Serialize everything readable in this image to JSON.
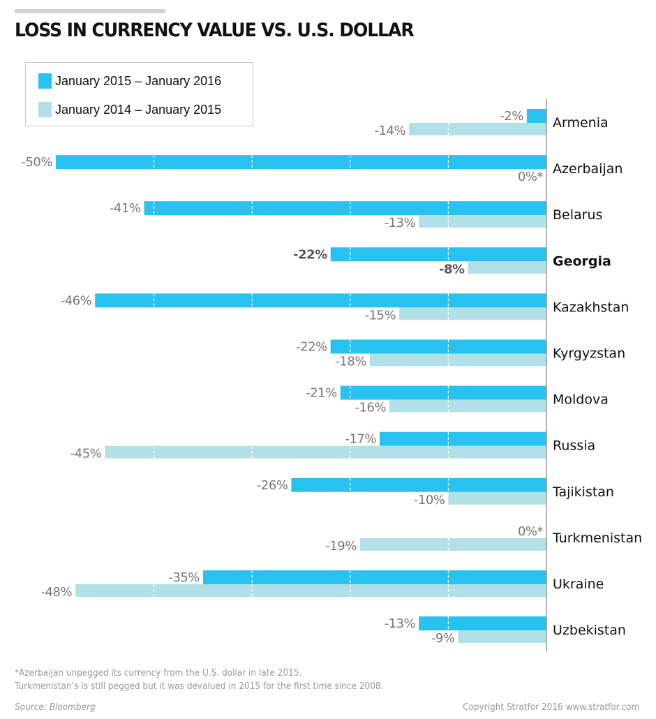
{
  "header": {
    "title": "LOSS IN CURRENCY VALUE VS. U.S. DOLLAR"
  },
  "colors": {
    "series_2016": "#27c2ef",
    "series_2015": "#b1e0e8",
    "axis": "#999999",
    "label_text": "#777777",
    "label_text_bold": "#555555",
    "country_text": "#111111"
  },
  "chart_data": {
    "type": "bar",
    "orientation": "horizontal",
    "title": "LOSS IN CURRENCY VALUE VS. U.S. DOLLAR",
    "xlabel": "",
    "ylabel": "",
    "xlim": [
      -50,
      0
    ],
    "grid": {
      "x": true,
      "style": "dashed",
      "ticks": [
        -40,
        -30,
        -20,
        -10
      ]
    },
    "legend_position": "top-left",
    "categories": [
      "Armenia",
      "Azerbaijan",
      "Belarus",
      "Georgia",
      "Kazakhstan",
      "Kyrgyzstan",
      "Moldova",
      "Russia",
      "Tajikistan",
      "Turkmenistan",
      "Ukraine",
      "Uzbekistan"
    ],
    "highlight_category": "Georgia",
    "series": [
      {
        "name": "January 2015 – January 2016",
        "values": [
          -2,
          -50,
          -41,
          -22,
          -46,
          -22,
          -21,
          -17,
          -26,
          0,
          -35,
          -13
        ],
        "labels": [
          "-2%",
          "-50%",
          "-41%",
          "-22%",
          "-46%",
          "-22%",
          "-21%",
          "-17%",
          "-26%",
          "0%*",
          "-35%",
          "-13%"
        ]
      },
      {
        "name": "January 2014 – January 2015",
        "values": [
          -14,
          0,
          -13,
          -8,
          -15,
          -18,
          -16,
          -45,
          -10,
          -19,
          -48,
          -9
        ],
        "labels": [
          "-14%",
          "0%*",
          "-13%",
          "-8%",
          "-15%",
          "-18%",
          "-16%",
          "-45%",
          "-10%",
          "-19%",
          "-48%",
          "-9%"
        ]
      }
    ]
  },
  "legend": {
    "items": [
      {
        "label": "January 2015 – January 2016",
        "color": "#27c2ef"
      },
      {
        "label": "January 2014 – January 2015",
        "color": "#b1e0e8"
      }
    ]
  },
  "footer": {
    "note_line1": "*Azerbaijan unpegged its currency from the U.S. dollar in late 2015.",
    "note_line2": "Turkmenistan’s is still pegged but it was devalued in 2015 for the first time since 2008.",
    "source": "Source: Bloomberg",
    "copyright": "Copyright Stratfor 2016   www.stratfor.com"
  }
}
